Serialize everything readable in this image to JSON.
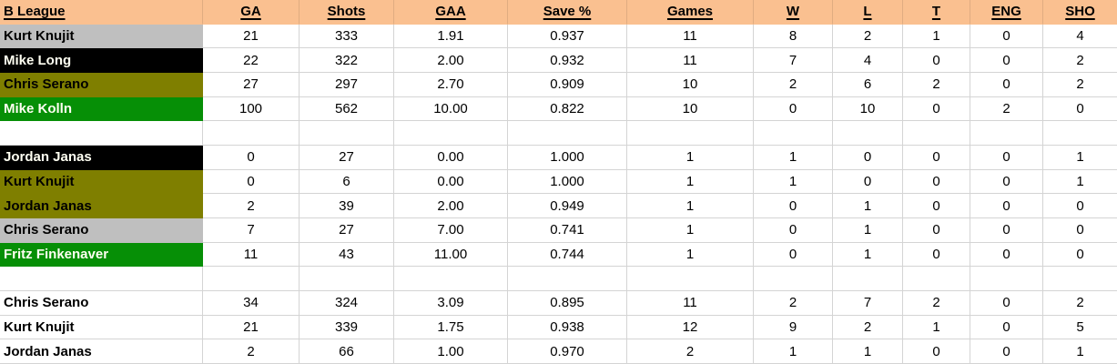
{
  "colors": {
    "header_bg": "#fac090",
    "fill_gray": "#bfbfbf",
    "fill_black": "#000000",
    "fill_olive": "#7f7f00",
    "fill_green": "#068f06",
    "grid": "#d4d4d4",
    "text_dark": "#000000",
    "text_light": "#fffff2",
    "cell_bg": "#ffffff"
  },
  "table": {
    "columns": [
      {
        "label": "B League"
      },
      {
        "label": "GA"
      },
      {
        "label": "Shots"
      },
      {
        "label": "GAA"
      },
      {
        "label": "Save %"
      },
      {
        "label": "Games"
      },
      {
        "label": "W"
      },
      {
        "label": "L"
      },
      {
        "label": "T"
      },
      {
        "label": "ENG"
      },
      {
        "label": "SHO"
      }
    ],
    "rows": [
      {
        "type": "data",
        "name": "Kurt Knujit",
        "fill": "gray",
        "values": [
          "21",
          "333",
          "1.91",
          "0.937",
          "11",
          "8",
          "2",
          "1",
          "0",
          "4"
        ]
      },
      {
        "type": "data",
        "name": "Mike Long",
        "fill": "black",
        "values": [
          "22",
          "322",
          "2.00",
          "0.932",
          "11",
          "7",
          "4",
          "0",
          "0",
          "2"
        ]
      },
      {
        "type": "data",
        "name": "Chris Serano",
        "fill": "olive",
        "values": [
          "27",
          "297",
          "2.70",
          "0.909",
          "10",
          "2",
          "6",
          "2",
          "0",
          "2"
        ]
      },
      {
        "type": "data",
        "name": "Mike Kolln",
        "fill": "green",
        "values": [
          "100",
          "562",
          "10.00",
          "0.822",
          "10",
          "0",
          "10",
          "0",
          "2",
          "0"
        ]
      },
      {
        "type": "blank"
      },
      {
        "type": "data",
        "name": "Jordan Janas",
        "fill": "black",
        "values": [
          "0",
          "27",
          "0.00",
          "1.000",
          "1",
          "1",
          "0",
          "0",
          "0",
          "1"
        ]
      },
      {
        "type": "data",
        "name": "Kurt Knujit",
        "fill": "olive",
        "values": [
          "0",
          "6",
          "0.00",
          "1.000",
          "1",
          "1",
          "0",
          "0",
          "0",
          "1"
        ]
      },
      {
        "type": "data",
        "name": "Jordan Janas",
        "fill": "olive",
        "values": [
          "2",
          "39",
          "2.00",
          "0.949",
          "1",
          "0",
          "1",
          "0",
          "0",
          "0"
        ]
      },
      {
        "type": "data",
        "name": "Chris Serano",
        "fill": "gray",
        "values": [
          "7",
          "27",
          "7.00",
          "0.741",
          "1",
          "0",
          "1",
          "0",
          "0",
          "0"
        ]
      },
      {
        "type": "data",
        "name": "Fritz Finkenaver",
        "fill": "green",
        "values": [
          "11",
          "43",
          "11.00",
          "0.744",
          "1",
          "0",
          "1",
          "0",
          "0",
          "0"
        ]
      },
      {
        "type": "blank"
      },
      {
        "type": "data",
        "name": "Chris Serano",
        "fill": "none",
        "values": [
          "34",
          "324",
          "3.09",
          "0.895",
          "11",
          "2",
          "7",
          "2",
          "0",
          "2"
        ]
      },
      {
        "type": "data",
        "name": "Kurt Knujit",
        "fill": "none",
        "values": [
          "21",
          "339",
          "1.75",
          "0.938",
          "12",
          "9",
          "2",
          "1",
          "0",
          "5"
        ]
      },
      {
        "type": "data",
        "name": "Jordan Janas",
        "fill": "none",
        "values": [
          "2",
          "66",
          "1.00",
          "0.970",
          "2",
          "1",
          "1",
          "0",
          "0",
          "1"
        ]
      }
    ]
  }
}
